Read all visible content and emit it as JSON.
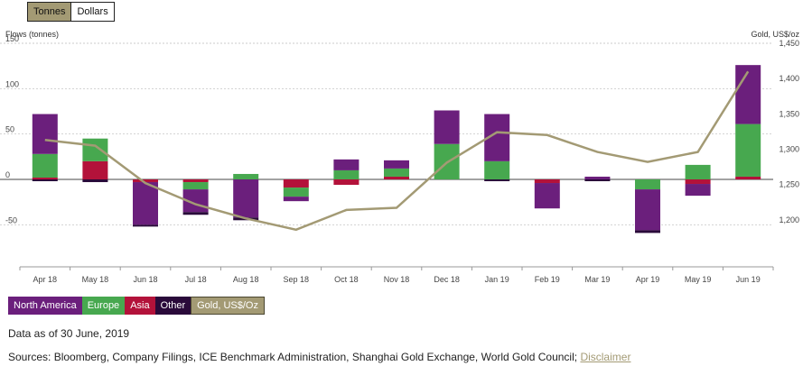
{
  "toggle": {
    "tonnes": "Tonnes",
    "dollars": "Dollars"
  },
  "colors": {
    "north_america": "#6b1f7c",
    "europe": "#47a84f",
    "asia": "#b3123a",
    "other": "#2a0a3a",
    "gold": "#a39a74"
  },
  "legend": {
    "north_america": "North America",
    "europe": "Europe",
    "asia": "Asia",
    "other": "Other",
    "gold": "Gold, US$/Oz"
  },
  "chart_data": {
    "type": "bar",
    "stacked": true,
    "left_axis_label": "Flows (tonnes)",
    "right_axis_label": "Gold, US$/oz",
    "left_ylim": [
      -80,
      150
    ],
    "left_ticks": [
      150,
      100,
      50,
      0,
      -50
    ],
    "left_tick_labels": [
      "150",
      "100",
      "50",
      "0",
      "-50"
    ],
    "right_ylim": [
      1150,
      1450
    ],
    "right_ticks": [
      1450,
      1400,
      1350,
      1300,
      1250,
      1200
    ],
    "right_tick_labels": [
      "1,450",
      "1,400",
      "1,350",
      "1,300",
      "1,250",
      "1,200"
    ],
    "categories": [
      "Apr 18",
      "May 18",
      "Jun 18",
      "Jul 18",
      "Aug 18",
      "Sep 18",
      "Oct 18",
      "Nov 18",
      "Dec 18",
      "Jan 19",
      "Feb 19",
      "Mar 19",
      "Apr 19",
      "May 19",
      "Jun 19"
    ],
    "series": [
      {
        "name": "Asia",
        "key": "asia",
        "values": [
          2,
          20,
          -3,
          -3,
          0,
          -9,
          -6,
          3,
          0,
          0,
          -4,
          0,
          0,
          -5,
          3
        ]
      },
      {
        "name": "Europe",
        "key": "europe",
        "values": [
          26,
          25,
          0,
          -8,
          6,
          -10,
          10,
          9,
          39,
          20,
          0,
          0,
          -11,
          16,
          58
        ]
      },
      {
        "name": "North America",
        "key": "north_america",
        "values": [
          44,
          0,
          -47,
          -25,
          -42,
          -5,
          12,
          9,
          37,
          52,
          -28,
          3,
          -45,
          -13,
          65
        ]
      },
      {
        "name": "Other",
        "key": "other",
        "values": [
          -2,
          -3,
          -2,
          -3,
          -3,
          0,
          0,
          0,
          0,
          -2,
          0,
          -2,
          -3,
          0,
          0
        ]
      }
    ],
    "line": {
      "name": "Gold, US$/Oz",
      "axis": "right",
      "values": [
        1313,
        1305,
        1252,
        1222,
        1202,
        1186,
        1214,
        1217,
        1281,
        1324,
        1320,
        1296,
        1282,
        1296,
        1410
      ]
    }
  },
  "footer": {
    "date_note": "Data as of 30 June, 2019",
    "sources": "Sources: Bloomberg, Company Filings, ICE Benchmark Administration, Shanghai Gold Exchange, World Gold Council;",
    "disclaimer": "Disclaimer"
  }
}
